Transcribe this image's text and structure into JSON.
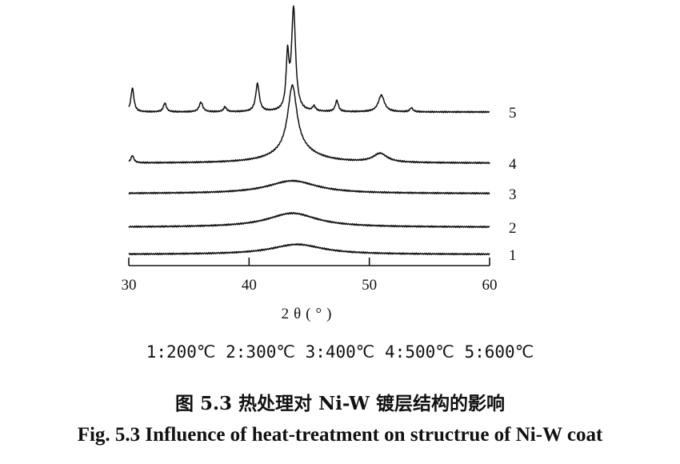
{
  "chart_data": {
    "type": "line",
    "xlabel": "2θ(°)",
    "xlim": [
      30,
      60
    ],
    "x_ticks": [
      30,
      40,
      50,
      60
    ],
    "y_axis_shown": false,
    "grid": false,
    "series": [
      {
        "name": "1",
        "peaks": [
          {
            "x": 44.0,
            "height": 0.25,
            "width": 2.6
          }
        ]
      },
      {
        "name": "2",
        "peaks": [
          {
            "x": 43.6,
            "height": 0.35,
            "width": 2.5
          }
        ]
      },
      {
        "name": "3",
        "peaks": [
          {
            "x": 43.6,
            "height": 0.32,
            "width": 2.5
          }
        ]
      },
      {
        "name": "4",
        "peaks": [
          {
            "x": 30.3,
            "height": 0.18,
            "width": 0.15
          },
          {
            "x": 43.6,
            "height": 1.6,
            "width": 0.45
          },
          {
            "x": 43.8,
            "height": 0.35,
            "width": 2.0
          },
          {
            "x": 50.9,
            "height": 0.22,
            "width": 0.7
          }
        ]
      },
      {
        "name": "5",
        "peaks": [
          {
            "x": 30.3,
            "height": 0.6,
            "width": 0.15
          },
          {
            "x": 33.0,
            "height": 0.22,
            "width": 0.15
          },
          {
            "x": 36.0,
            "height": 0.24,
            "width": 0.18
          },
          {
            "x": 38.0,
            "height": 0.12,
            "width": 0.15
          },
          {
            "x": 40.7,
            "height": 0.7,
            "width": 0.18
          },
          {
            "x": 43.2,
            "height": 1.3,
            "width": 0.14
          },
          {
            "x": 43.7,
            "height": 2.55,
            "width": 0.2
          },
          {
            "x": 45.4,
            "height": 0.12,
            "width": 0.15
          },
          {
            "x": 47.3,
            "height": 0.28,
            "width": 0.15
          },
          {
            "x": 51.0,
            "height": 0.42,
            "width": 0.3
          },
          {
            "x": 53.5,
            "height": 0.1,
            "width": 0.15
          }
        ]
      }
    ]
  },
  "legend_text": "1:200℃  2:300℃  3:400℃  4:500℃  5:600℃",
  "caption_cn": "图 5.3 热处理对 Ni-W 镀层结构的影响",
  "caption_en": "Fig. 5.3 Influence of heat-treatment on structrue of Ni-W coat"
}
